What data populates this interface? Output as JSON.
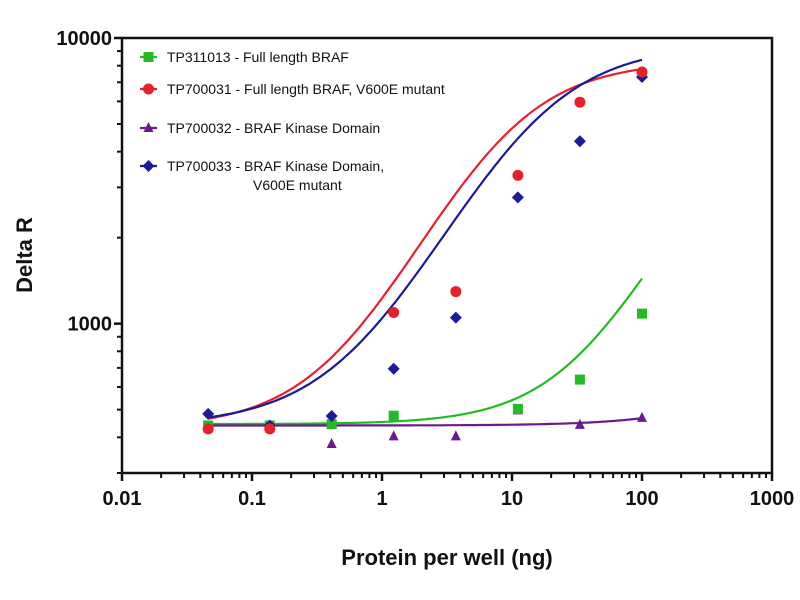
{
  "chart_data": {
    "type": "scatter",
    "title": "",
    "xlabel": "Protein per well (ng)",
    "ylabel": "Delta R",
    "xscale": "log",
    "yscale": "log",
    "xlim": [
      0.01,
      1000
    ],
    "ylim": [
      300,
      10000
    ],
    "xticks": [
      0.01,
      0.1,
      1,
      10,
      100,
      1000
    ],
    "xtick_labels": [
      "0.01",
      "0.1",
      "1",
      "10",
      "100",
      "1000"
    ],
    "yticks": [
      1000,
      10000
    ],
    "ytick_labels": [
      "1000",
      "10000"
    ],
    "grid": false,
    "legend_position": "top-left",
    "x": [
      0.046,
      0.137,
      0.41,
      1.23,
      3.7,
      11.1,
      33.3,
      100
    ],
    "series": [
      {
        "name": "TP311013 - Full length BRAF",
        "legend_lines": [
          "TP311013 - Full length BRAF"
        ],
        "color": "#22bb22",
        "marker": "square",
        "values": [
          440,
          440,
          445,
          476,
          null,
          503,
          637,
          1084
        ],
        "fit": {
          "bottom": 445,
          "top": 6000,
          "ec50": 400,
          "hill": 1.1
        }
      },
      {
        "name": "TP700031 - Full length BRAF, V600E mutant",
        "legend_lines": [
          "TP700031 - Full length BRAF, V600E mutant"
        ],
        "color": "#e8202a",
        "marker": "circle",
        "values": [
          428,
          428,
          null,
          1094,
          1295,
          3305,
          5960,
          7600
        ],
        "fit": {
          "bottom": 430,
          "top": 8300,
          "ec50": 8,
          "hill": 1.05
        }
      },
      {
        "name": "TP700032 - BRAF Kinase Domain",
        "legend_lines": [
          "TP700032 - BRAF Kinase Domain"
        ],
        "color": "#6a1a8a",
        "marker": "triangle",
        "values": [
          430,
          430,
          379,
          403,
          403,
          497,
          442,
          468
        ],
        "fit": {
          "bottom": 440,
          "top": 1000,
          "ec50": 2000,
          "hill": 1.0
        }
      },
      {
        "name": "TP700033 - BRAF Kinase Domain, V600E mutant",
        "legend_lines": [
          "TP700033 - BRAF Kinase Domain,",
          "V600E mutant"
        ],
        "color": "#1a1a9a",
        "marker": "diamond",
        "values": [
          483,
          440,
          475,
          695,
          1050,
          2766,
          4352,
          7300
        ],
        "fit": {
          "bottom": 440,
          "top": 9500,
          "ec50": 14,
          "hill": 1.0
        }
      }
    ]
  }
}
